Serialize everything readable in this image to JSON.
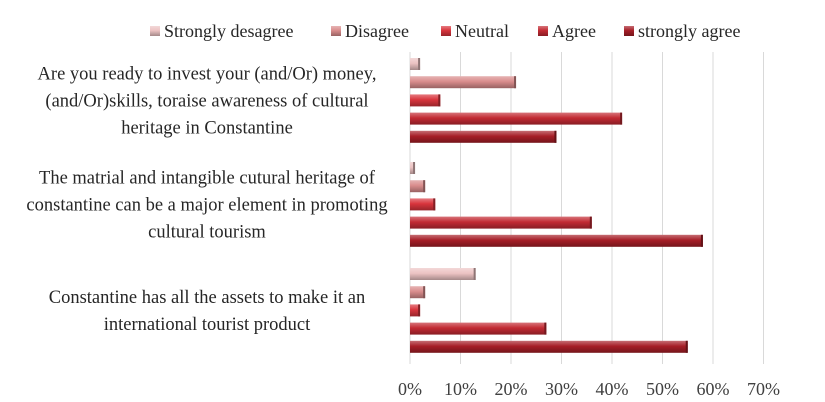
{
  "chart_data": {
    "type": "bar",
    "orientation": "horizontal",
    "title": "",
    "xlabel": "",
    "ylabel": "",
    "xlim": [
      0,
      70
    ],
    "x_ticks": [
      "0%",
      "10%",
      "20%",
      "30%",
      "40%",
      "50%",
      "60%",
      "70%"
    ],
    "grid": true,
    "legend_position": "top",
    "categories": [
      {
        "lines": [
          "Are you ready to invest your (and/Or) money,",
          "(and/Or)skills, toraise awareness of cultural",
          "heritage in Constantine"
        ]
      },
      {
        "lines": [
          "The matrial and intangible cutural heritage of",
          "constantine can be a major element in promoting",
          "cultural tourism"
        ]
      },
      {
        "lines": [
          "Constantine has all the assets to make it an",
          "international tourist product"
        ]
      }
    ],
    "series": [
      {
        "name": "Strongly desagree",
        "color": "#ecc3c3",
        "values": [
          2,
          1,
          13
        ]
      },
      {
        "name": "Disagree",
        "color": "#d98c8c",
        "values": [
          21,
          3,
          3
        ]
      },
      {
        "name": "Neutral",
        "color": "#d8343c",
        "values": [
          6,
          5,
          2
        ]
      },
      {
        "name": "Agree",
        "color": "#c22a33",
        "values": [
          42,
          36,
          27
        ]
      },
      {
        "name": "strongly agree",
        "color": "#a61e27",
        "values": [
          29,
          58,
          55
        ]
      }
    ]
  }
}
